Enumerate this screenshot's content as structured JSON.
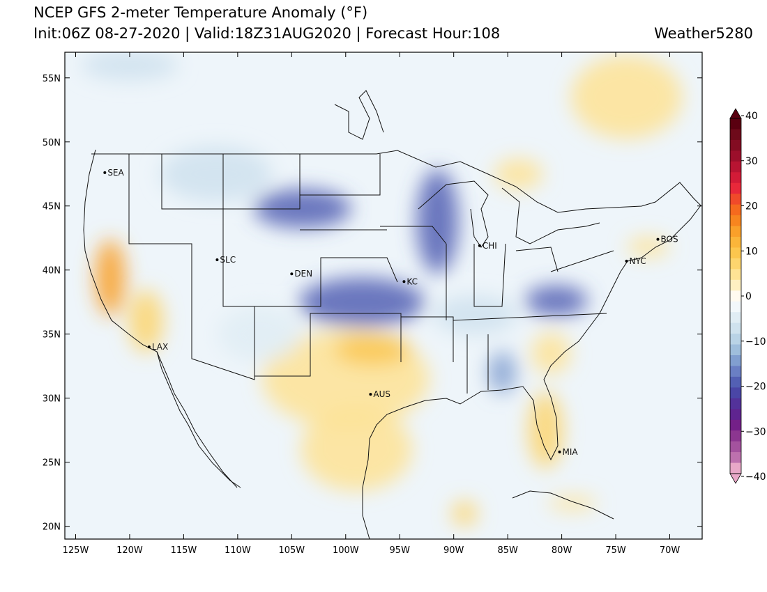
{
  "header": {
    "title": "NCEP GFS 2-meter Temperature Anomaly (°F)",
    "subtitle": "Init:06Z 08-27-2020 | Valid:18Z31AUG2020 | Forecast Hour:108",
    "brand": "Weather5280"
  },
  "map": {
    "lon_range": [
      -126,
      -67
    ],
    "lat_range": [
      19,
      57
    ],
    "lat_ticks": [
      {
        "lat": 20,
        "label": "20N"
      },
      {
        "lat": 25,
        "label": "25N"
      },
      {
        "lat": 30,
        "label": "30N"
      },
      {
        "lat": 35,
        "label": "35N"
      },
      {
        "lat": 40,
        "label": "40N"
      },
      {
        "lat": 45,
        "label": "45N"
      },
      {
        "lat": 50,
        "label": "50N"
      },
      {
        "lat": 55,
        "label": "55N"
      }
    ],
    "lon_ticks": [
      {
        "lon": -125,
        "label": "125W"
      },
      {
        "lon": -120,
        "label": "120W"
      },
      {
        "lon": -115,
        "label": "115W"
      },
      {
        "lon": -110,
        "label": "110W"
      },
      {
        "lon": -105,
        "label": "105W"
      },
      {
        "lon": -100,
        "label": "100W"
      },
      {
        "lon": -95,
        "label": "95W"
      },
      {
        "lon": -90,
        "label": "90W"
      },
      {
        "lon": -85,
        "label": "85W"
      },
      {
        "lon": -80,
        "label": "80W"
      },
      {
        "lon": -75,
        "label": "75W"
      },
      {
        "lon": -70,
        "label": "70W"
      }
    ],
    "cities": [
      {
        "name": "SEA",
        "lon": -122.3,
        "lat": 47.6
      },
      {
        "name": "SLC",
        "lon": -111.9,
        "lat": 40.8
      },
      {
        "name": "DEN",
        "lon": -105.0,
        "lat": 39.7
      },
      {
        "name": "KC",
        "lon": -94.6,
        "lat": 39.1
      },
      {
        "name": "CHI",
        "lon": -87.6,
        "lat": 41.9
      },
      {
        "name": "NYC",
        "lon": -74.0,
        "lat": 40.7
      },
      {
        "name": "BOS",
        "lon": -71.1,
        "lat": 42.4
      },
      {
        "name": "LAX",
        "lon": -118.2,
        "lat": 34.0
      },
      {
        "name": "AUS",
        "lon": -97.7,
        "lat": 30.3
      },
      {
        "name": "MIA",
        "lon": -80.2,
        "lat": 25.8
      }
    ],
    "anomaly_regions": [
      {
        "lon": -121.8,
        "lat": 39.4,
        "rx": 22,
        "ry": 55,
        "value": 14
      },
      {
        "lon": -118.5,
        "lat": 36.0,
        "rx": 25,
        "ry": 45,
        "value": 8
      },
      {
        "lon": -104,
        "lat": 44.8,
        "rx": 70,
        "ry": 28,
        "value": -20
      },
      {
        "lon": -98.5,
        "lat": 37.5,
        "rx": 90,
        "ry": 35,
        "value": -20
      },
      {
        "lon": -91.5,
        "lat": 43.8,
        "rx": 30,
        "ry": 75,
        "value": -20
      },
      {
        "lon": -80.5,
        "lat": 37.6,
        "rx": 45,
        "ry": 22,
        "value": -20
      },
      {
        "lon": -85.5,
        "lat": 32.0,
        "rx": 20,
        "ry": 30,
        "value": -15
      },
      {
        "lon": -100,
        "lat": 31.5,
        "rx": 120,
        "ry": 70,
        "value": 6
      },
      {
        "lon": -97.5,
        "lat": 33.8,
        "rx": 55,
        "ry": 22,
        "value": 10
      },
      {
        "lon": -99,
        "lat": 26.0,
        "rx": 80,
        "ry": 60,
        "value": 4
      },
      {
        "lon": -81.5,
        "lat": 27.5,
        "rx": 25,
        "ry": 55,
        "value": 8
      },
      {
        "lon": -81,
        "lat": 33.5,
        "rx": 28,
        "ry": 30,
        "value": 5
      },
      {
        "lon": -74,
        "lat": 53.5,
        "rx": 80,
        "ry": 60,
        "value": 6
      },
      {
        "lon": -84,
        "lat": 47.5,
        "rx": 35,
        "ry": 22,
        "value": 5
      },
      {
        "lon": -72,
        "lat": 41.8,
        "rx": 30,
        "ry": 14,
        "value": 5
      },
      {
        "lon": -120,
        "lat": 56,
        "rx": 70,
        "ry": 22,
        "value": -8
      },
      {
        "lon": -112,
        "lat": 47.5,
        "rx": 80,
        "ry": 40,
        "value": -8
      },
      {
        "lon": -88,
        "lat": 36.5,
        "rx": 60,
        "ry": 28,
        "value": -8
      },
      {
        "lon": -108,
        "lat": 35,
        "rx": 60,
        "ry": 40,
        "value": -6
      },
      {
        "lon": -89,
        "lat": 21.0,
        "rx": 18,
        "ry": 18,
        "value": 8
      },
      {
        "lon": -79,
        "lat": 21.8,
        "rx": 35,
        "ry": 10,
        "value": 6
      }
    ]
  },
  "colorbar": {
    "bins": [
      {
        "value": 40,
        "color": "#5a0010"
      },
      {
        "value": 37.5,
        "color": "#6e0a1a"
      },
      {
        "value": 35,
        "color": "#830c22"
      },
      {
        "value": 32.5,
        "color": "#9c0f2b"
      },
      {
        "value": 30,
        "color": "#b81432"
      },
      {
        "value": 27.5,
        "color": "#d21b37"
      },
      {
        "value": 25,
        "color": "#e8283a"
      },
      {
        "value": 22.5,
        "color": "#f04a2a"
      },
      {
        "value": 20,
        "color": "#f56a1e"
      },
      {
        "value": 17.5,
        "color": "#f7851f"
      },
      {
        "value": 15,
        "color": "#f9a02a"
      },
      {
        "value": 12.5,
        "color": "#fab53a"
      },
      {
        "value": 10,
        "color": "#fcc64e"
      },
      {
        "value": 7.5,
        "color": "#fdd56e"
      },
      {
        "value": 5,
        "color": "#fee395"
      },
      {
        "value": 2.5,
        "color": "#fef0c2"
      },
      {
        "value": 0,
        "color": "#fffbf0"
      },
      {
        "value": -2.5,
        "color": "#f2f8fb"
      },
      {
        "value": -5,
        "color": "#e0edf4"
      },
      {
        "value": -7.5,
        "color": "#cfe2ee"
      },
      {
        "value": -10,
        "color": "#b9d3e6"
      },
      {
        "value": -12.5,
        "color": "#9fbedc"
      },
      {
        "value": -15,
        "color": "#819fd0"
      },
      {
        "value": -17.5,
        "color": "#6a7fc4"
      },
      {
        "value": -20,
        "color": "#5360b4"
      },
      {
        "value": -22.5,
        "color": "#4a46a6"
      },
      {
        "value": -25,
        "color": "#53329a"
      },
      {
        "value": -27.5,
        "color": "#5f2490"
      },
      {
        "value": -30,
        "color": "#742088"
      },
      {
        "value": -32.5,
        "color": "#8c3690"
      },
      {
        "value": -35,
        "color": "#a4529e"
      },
      {
        "value": -37.5,
        "color": "#bd71ae"
      },
      {
        "value": -40,
        "color": "#e8a8c8"
      }
    ],
    "labels": [
      "40",
      "30",
      "20",
      "10",
      "0",
      "−10",
      "−20",
      "−30",
      "−40"
    ]
  }
}
